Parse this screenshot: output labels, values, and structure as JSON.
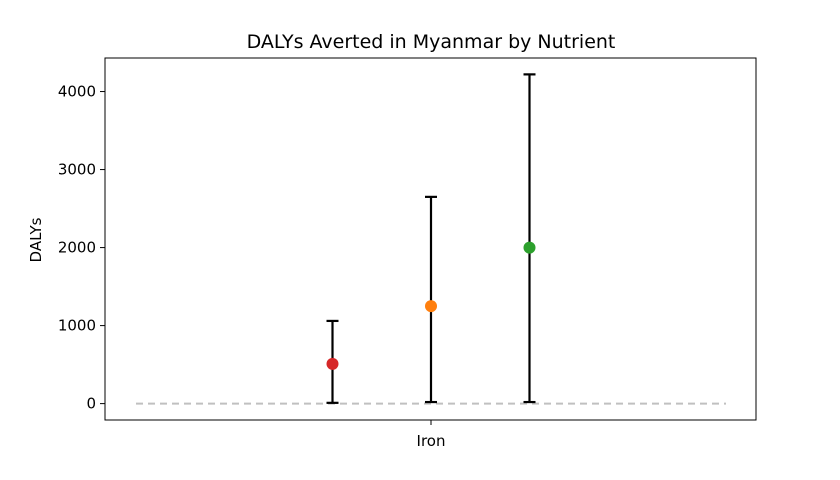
{
  "chart_data": {
    "type": "scatter",
    "title": "DALYs Averted in Myanmar by Nutrient",
    "xlabel": "",
    "ylabel": "DALYs",
    "categories": [
      "Iron"
    ],
    "ylim": [
      -210,
      4430
    ],
    "yticks": [
      0,
      1000,
      2000,
      3000,
      4000
    ],
    "grid": false,
    "reference_line": {
      "y": 0,
      "style": "dashed",
      "color": "#c0c0c0"
    },
    "points": [
      {
        "category": "Iron",
        "offset": -1,
        "value": 510,
        "low": 10,
        "high": 1060,
        "color": "#d62728"
      },
      {
        "category": "Iron",
        "offset": 0,
        "value": 1250,
        "low": 20,
        "high": 2650,
        "color": "#ff7f0e"
      },
      {
        "category": "Iron",
        "offset": 1,
        "value": 2000,
        "low": 20,
        "high": 4220,
        "color": "#2ca02c"
      }
    ]
  }
}
